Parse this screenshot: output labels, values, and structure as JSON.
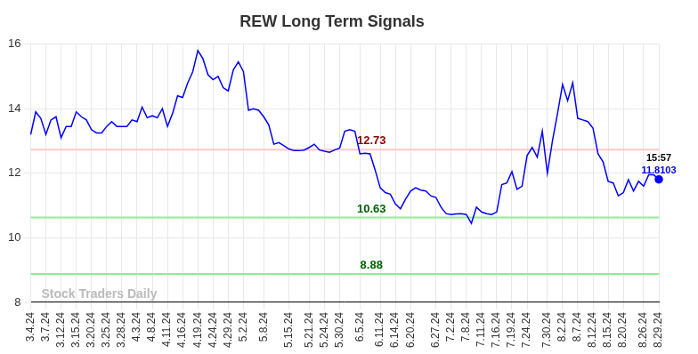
{
  "chart_data": {
    "type": "line",
    "title": "REW Long Term Signals",
    "categories": [
      "3.4.24",
      null,
      null,
      "3.7.24",
      null,
      null,
      "3.12.24",
      null,
      null,
      "3.15.24",
      null,
      null,
      "3.20.24",
      null,
      null,
      "3.25.24",
      null,
      null,
      "3.28.24",
      null,
      null,
      "4.3.24",
      null,
      null,
      "4.8.24",
      null,
      null,
      "4.11.24",
      null,
      null,
      "4.16.24",
      null,
      null,
      "4.19.24",
      null,
      null,
      "4.24.24",
      null,
      null,
      "4.29.24",
      null,
      null,
      "5.2.24",
      null,
      null,
      null,
      "5.8.24",
      null,
      null,
      null,
      null,
      "5.15.24",
      null,
      null,
      null,
      "5.21.24",
      null,
      null,
      "5.24.24",
      null,
      null,
      "5.30.24",
      null,
      null,
      null,
      "6.5.24",
      null,
      null,
      null,
      "6.11.24",
      null,
      null,
      "6.14.24",
      null,
      null,
      "6.20.24",
      null,
      null,
      null,
      null,
      "6.27.24",
      null,
      null,
      "7.2.24",
      null,
      null,
      "7.8.24",
      null,
      null,
      "7.11.24",
      null,
      null,
      "7.16.24",
      null,
      null,
      "7.19.24",
      null,
      null,
      "7.24.24",
      null,
      null,
      null,
      "7.30.24",
      null,
      null,
      "8.2.24",
      null,
      null,
      "8.7.24",
      null,
      null,
      "8.12.24",
      null,
      null,
      "8.15.24",
      null,
      null,
      "8.20.24",
      null,
      null,
      null,
      "8.26.24",
      null,
      null,
      "8.29.24"
    ],
    "values": [
      13.2,
      13.9,
      13.7,
      13.2,
      13.65,
      13.75,
      13.1,
      13.45,
      13.45,
      13.9,
      13.75,
      13.65,
      13.35,
      13.25,
      13.25,
      13.45,
      13.6,
      13.45,
      13.45,
      13.45,
      13.65,
      13.6,
      14.05,
      13.72,
      13.78,
      13.72,
      14.0,
      13.45,
      13.85,
      14.4,
      14.35,
      14.8,
      15.15,
      15.8,
      15.55,
      15.05,
      14.9,
      15.0,
      14.65,
      14.55,
      15.2,
      15.45,
      15.15,
      13.95,
      14.0,
      13.95,
      13.75,
      13.5,
      12.9,
      12.95,
      12.85,
      12.75,
      12.7,
      12.7,
      12.72,
      12.8,
      12.9,
      12.72,
      12.68,
      12.65,
      12.72,
      12.78,
      13.3,
      13.35,
      13.3,
      12.6,
      12.62,
      12.6,
      12.1,
      11.55,
      11.4,
      11.35,
      11.05,
      10.9,
      11.2,
      11.45,
      11.55,
      11.48,
      11.45,
      11.3,
      11.25,
      10.95,
      10.75,
      10.72,
      10.74,
      10.75,
      10.72,
      10.45,
      10.95,
      10.8,
      10.75,
      10.72,
      10.8,
      11.65,
      11.7,
      12.05,
      11.5,
      11.6,
      12.55,
      12.8,
      12.5,
      13.3,
      12.0,
      13.0,
      13.85,
      14.75,
      14.25,
      14.8,
      13.7,
      13.65,
      13.6,
      13.4,
      12.6,
      12.35,
      11.75,
      11.7,
      11.3,
      11.4,
      11.8,
      11.45,
      11.75,
      11.6,
      11.95,
      11.95,
      11.8103
    ],
    "color": "#0000ff",
    "ylim": [
      8,
      16
    ],
    "yticks": [
      8,
      10,
      12,
      14,
      16
    ],
    "grid": true,
    "reference_lines": [
      {
        "value": 12.73,
        "color": "#ffc8c8",
        "label_color": "#8b0000"
      },
      {
        "value": 10.63,
        "color": "#90ee90",
        "label_color": "#006400"
      },
      {
        "value": 8.88,
        "color": "#90ee90",
        "label_color": "#006400"
      }
    ],
    "last_point": {
      "time": "15:57",
      "value": 11.8103,
      "label_color": "#0000ff"
    },
    "watermark": "Stock Traders Daily"
  }
}
